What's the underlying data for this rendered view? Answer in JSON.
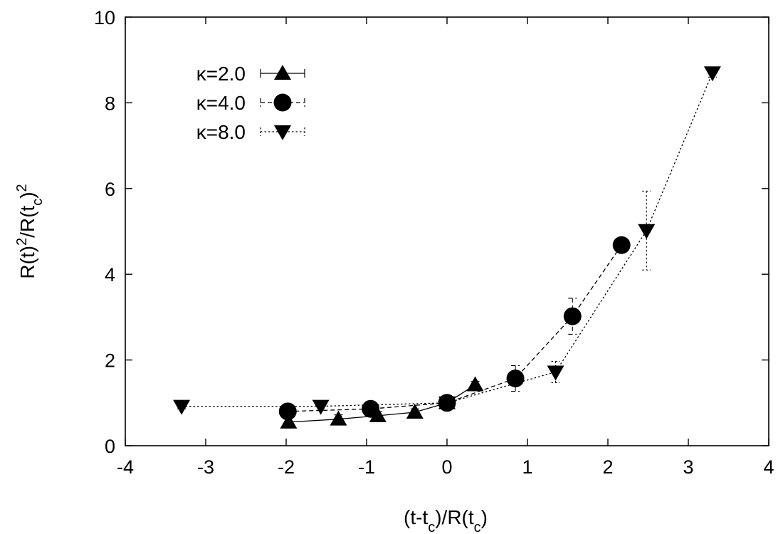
{
  "chart_data": {
    "type": "scatter",
    "title": "",
    "xlabel": "(t-t_c)/R(t_c)",
    "ylabel": "R(t)^2/R(t_c)^2",
    "xlim": [
      -4,
      4
    ],
    "ylim": [
      0,
      10
    ],
    "xticks": [
      -4,
      -3,
      -2,
      -1,
      0,
      1,
      2,
      3,
      4
    ],
    "yticks": [
      0,
      2,
      4,
      6,
      8,
      10
    ],
    "xtick_labels": [
      "-4",
      "-3",
      "-2",
      "-1",
      "0",
      "1",
      "2",
      "3",
      "4"
    ],
    "ytick_labels": [
      "0",
      "2",
      "4",
      "6",
      "8",
      "10"
    ],
    "grid": false,
    "legend_position": "top-left",
    "series": [
      {
        "name": "κ=2.0",
        "marker": "triangle-up",
        "line_style": "solid",
        "color": "#000000",
        "points": [
          {
            "x": -1.97,
            "y": 0.55,
            "err": 0.1
          },
          {
            "x": -1.35,
            "y": 0.62,
            "err": 0.1
          },
          {
            "x": -0.86,
            "y": 0.7,
            "err": 0.1
          },
          {
            "x": -0.4,
            "y": 0.78,
            "err": 0.08
          },
          {
            "x": 0.0,
            "y": 1.0,
            "err": 0.05
          },
          {
            "x": 0.35,
            "y": 1.42,
            "err": 0.08
          }
        ]
      },
      {
        "name": "κ=4.0",
        "marker": "circle",
        "line_style": "dashed",
        "color": "#000000",
        "points": [
          {
            "x": -1.98,
            "y": 0.8,
            "err": 0.1
          },
          {
            "x": -0.95,
            "y": 0.86,
            "err": 0.1
          },
          {
            "x": 0.0,
            "y": 1.0,
            "err": 0.05
          },
          {
            "x": 0.85,
            "y": 1.57,
            "err": 0.3
          },
          {
            "x": 1.56,
            "y": 3.02,
            "err": 0.42
          },
          {
            "x": 2.17,
            "y": 4.68,
            "err": 0.15
          }
        ]
      },
      {
        "name": "κ=8.0",
        "marker": "triangle-down",
        "line_style": "dotted",
        "color": "#000000",
        "points": [
          {
            "x": -3.3,
            "y": 0.92,
            "err": 0.06
          },
          {
            "x": -1.57,
            "y": 0.92,
            "err": 0.1
          },
          {
            "x": 0.0,
            "y": 1.0,
            "err": 0.05
          },
          {
            "x": 1.35,
            "y": 1.72,
            "err": 0.25
          },
          {
            "x": 2.48,
            "y": 5.02,
            "err": 0.92
          },
          {
            "x": 3.3,
            "y": 8.7,
            "err": 0.1
          }
        ]
      }
    ]
  }
}
